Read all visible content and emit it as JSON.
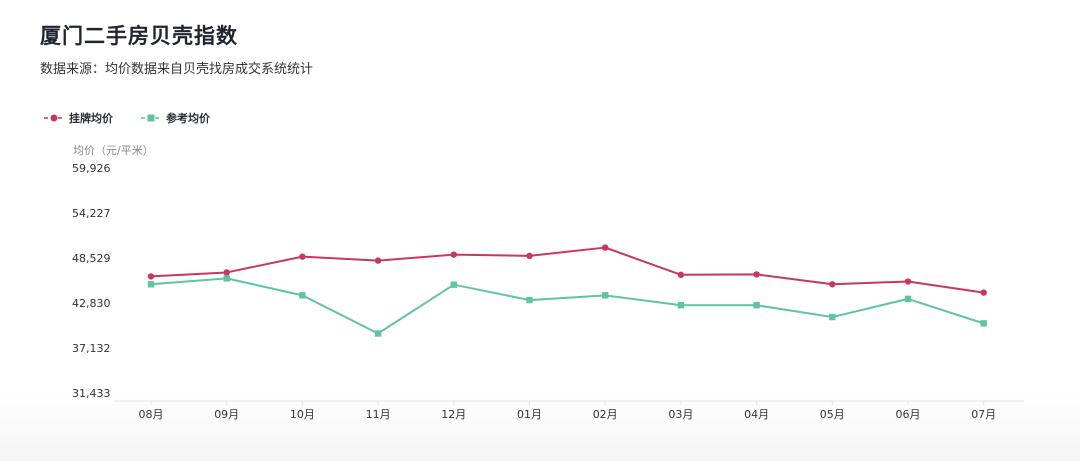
{
  "title": "厦门二手房贝壳指数",
  "subtitle": "数据来源：均价数据来自贝壳找房成交系统统计",
  "colors": {
    "listing": "#c8375e",
    "reference": "#5ec4a1",
    "axis": "#e3e3e8",
    "tick": "#333333"
  },
  "chart_data": {
    "type": "line",
    "ylabel": "均价（元/平米）",
    "categories": [
      "08月",
      "09月",
      "10月",
      "11月",
      "12月",
      "01月",
      "02月",
      "03月",
      "04月",
      "05月",
      "06月",
      "07月"
    ],
    "ylim": [
      31433,
      59926
    ],
    "yticks": [
      "31,433",
      "37,132",
      "42,830",
      "48,529",
      "54,227",
      "59,926"
    ],
    "yticks_values": [
      31433,
      37132,
      42830,
      48529,
      54227,
      59926
    ],
    "legend_position": "top-left",
    "series": [
      {
        "name": "挂牌均价",
        "marker": "circle",
        "values": [
          46200,
          46700,
          48700,
          48200,
          48950,
          48800,
          49850,
          46400,
          46450,
          45200,
          45550,
          44150
        ]
      },
      {
        "name": "参考均价",
        "marker": "square",
        "values": [
          45200,
          45950,
          43800,
          38970,
          45150,
          43200,
          43800,
          42550,
          42550,
          41050,
          43350,
          40250
        ]
      }
    ]
  }
}
